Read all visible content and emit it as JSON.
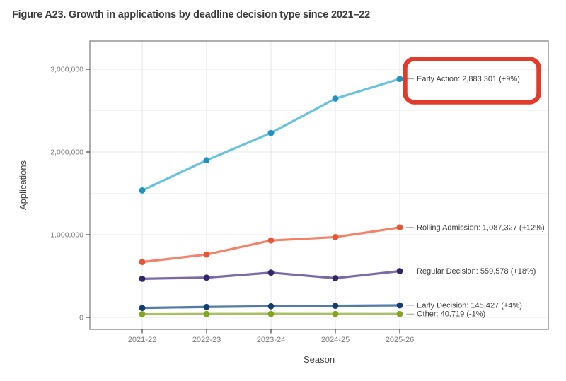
{
  "page": {
    "title": "Figure A23. Growth in applications by deadline decision type since 2021–22"
  },
  "chart_data": {
    "type": "line",
    "title": "Figure A23. Growth in applications by deadline decision type since 2021–22",
    "xlabel": "Season",
    "ylabel": "Applications",
    "categories": [
      "2021-22",
      "2022-23",
      "2023-24",
      "2024-25",
      "2025-26"
    ],
    "series": [
      {
        "name": "Early Action",
        "values": [
          1535000,
          1900000,
          2230000,
          2645230,
          2883301
        ],
        "final_value": "2,883,301",
        "change_pct": "+9%",
        "label": "Early Action: 2,883,301 (+9%)",
        "line_color": "#66c2de",
        "point_color": "#2093c0",
        "highlighted": true
      },
      {
        "name": "Rolling Admission",
        "values": [
          670000,
          760000,
          930000,
          970828,
          1087327
        ],
        "final_value": "1,087,327",
        "change_pct": "+12%",
        "label": "Rolling Admission: 1,087,327 (+12%)",
        "line_color": "#f4816a",
        "point_color": "#e85535",
        "highlighted": false
      },
      {
        "name": "Regular Decision",
        "values": [
          467000,
          481000,
          541000,
          474219,
          559578
        ],
        "final_value": "559,578",
        "change_pct": "+18%",
        "label": "Regular Decision: 559,578 (+18%)",
        "line_color": "#7b6aa6",
        "point_color": "#32266a",
        "highlighted": false
      },
      {
        "name": "Early Decision",
        "values": [
          114000,
          126000,
          134000,
          139833,
          145427
        ],
        "final_value": "145,427",
        "change_pct": "+4%",
        "label": "Early Decision: 145,427 (+4%)",
        "line_color": "#527ca6",
        "point_color": "#123e72",
        "highlighted": false
      },
      {
        "name": "Other",
        "values": [
          38000,
          41000,
          41500,
          41130,
          40719
        ],
        "final_value": "40,719",
        "change_pct": "-1%",
        "label": "Other: 40,719 (-1%)",
        "line_color": "#a9bf63",
        "point_color": "#82a51f",
        "highlighted": false
      }
    ],
    "ylim": [
      0,
      3000000
    ],
    "yticks": [
      {
        "value": 0,
        "label": "0"
      },
      {
        "value": 1000000,
        "label": "1,000,000"
      },
      {
        "value": 2000000,
        "label": "2,000,000"
      },
      {
        "value": 3000000,
        "label": "3,000,000"
      }
    ],
    "yminor": [
      500000,
      1500000,
      2500000
    ],
    "grid": "major-and-minor",
    "legend": "direct-labels-right",
    "colors": {
      "highlight_box": "#e13b2b",
      "panel_border": "#8c8c8c",
      "grid_major": "#e7e7e7",
      "grid_minor": "#f3f3f3",
      "tick_mark": "#333333",
      "leader_line": "#999999"
    }
  }
}
